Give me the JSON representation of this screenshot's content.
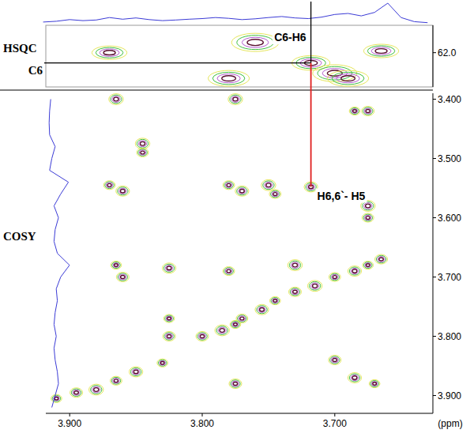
{
  "chart_data": [
    {
      "type": "contour",
      "title": "HSQC",
      "xlim": [
        3.918,
        3.626
      ],
      "ylim": [
        61.2,
        63.0
      ],
      "yticks": [
        {
          "value": 62,
          "label": "62.0"
        }
      ],
      "tick_labels": "y",
      "peaks": {
        "x": [
          3.87,
          3.78,
          3.76,
          3.718,
          3.7,
          3.665,
          3.69
        ],
        "y": [
          62.0,
          62.75,
          61.7,
          62.3,
          62.6,
          61.95,
          62.75
        ]
      },
      "projection": {
        "color": "#3b3bd6",
        "x": [
          3.92,
          3.91,
          3.9,
          3.89,
          3.88,
          3.87,
          3.86,
          3.85,
          3.84,
          3.83,
          3.82,
          3.81,
          3.8,
          3.79,
          3.78,
          3.77,
          3.76,
          3.75,
          3.74,
          3.73,
          3.72,
          3.71,
          3.7,
          3.69,
          3.68,
          3.67,
          3.66,
          3.65,
          3.64,
          3.63
        ],
        "values": [
          0.08,
          0.12,
          0.2,
          0.15,
          0.18,
          0.3,
          0.22,
          0.28,
          0.2,
          0.15,
          0.18,
          0.22,
          0.25,
          0.3,
          0.26,
          0.2,
          0.24,
          0.3,
          0.35,
          0.28,
          0.25,
          0.32,
          0.45,
          0.5,
          0.38,
          0.55,
          1.0,
          0.3,
          0.1,
          0.05
        ]
      },
      "annotations": [
        {
          "text": "C6",
          "y": 62.3
        },
        {
          "text": "C6-H6",
          "x": 3.718,
          "y": 62.3
        }
      ]
    },
    {
      "type": "contour",
      "title": "COSY",
      "xlim": [
        3.918,
        3.626
      ],
      "ylim": [
        3.39,
        3.93
      ],
      "xlabel": "(ppm)",
      "xticks": [
        {
          "value": 3.9,
          "label": "3.900"
        },
        {
          "value": 3.8,
          "label": "3.800"
        },
        {
          "value": 3.7,
          "label": "3.700"
        }
      ],
      "yticks": [
        {
          "value": 3.4,
          "label": "3.400"
        },
        {
          "value": 3.5,
          "label": "3.500"
        },
        {
          "value": 3.6,
          "label": "3.600"
        },
        {
          "value": 3.7,
          "label": "3.700"
        },
        {
          "value": 3.8,
          "label": "3.800"
        },
        {
          "value": 3.9,
          "label": "3.900"
        }
      ],
      "peaks": {
        "x": [
          3.91,
          3.895,
          3.88,
          3.865,
          3.85,
          3.83,
          3.8,
          3.785,
          3.77,
          3.755,
          3.745,
          3.73,
          3.715,
          3.7,
          3.685,
          3.675,
          3.665,
          3.865,
          3.87,
          3.86,
          3.865,
          3.86,
          3.845,
          3.845,
          3.825,
          3.825,
          3.825,
          3.775,
          3.78,
          3.77,
          3.775,
          3.775,
          3.75,
          3.745,
          3.718,
          3.685,
          3.675,
          3.675,
          3.675,
          3.685,
          3.67,
          3.7,
          3.73,
          3.78
        ],
        "y": [
          3.905,
          3.895,
          3.89,
          3.875,
          3.86,
          3.845,
          3.8,
          3.79,
          3.77,
          3.755,
          3.74,
          3.725,
          3.715,
          3.7,
          3.69,
          3.68,
          3.67,
          3.4,
          3.545,
          3.555,
          3.68,
          3.7,
          3.475,
          3.49,
          3.685,
          3.77,
          3.8,
          3.4,
          3.545,
          3.555,
          3.78,
          3.88,
          3.545,
          3.56,
          3.548,
          3.42,
          3.42,
          3.58,
          3.6,
          3.87,
          3.88,
          3.84,
          3.68,
          3.69
        ]
      },
      "projection": {
        "color": "#3b3bd6",
        "y": [
          3.4,
          3.42,
          3.44,
          3.46,
          3.48,
          3.5,
          3.52,
          3.54,
          3.56,
          3.58,
          3.6,
          3.62,
          3.64,
          3.66,
          3.68,
          3.7,
          3.72,
          3.74,
          3.76,
          3.78,
          3.8,
          3.82,
          3.84,
          3.86,
          3.88,
          3.9,
          3.92
        ],
        "values": [
          0.15,
          0.1,
          0.08,
          0.1,
          0.35,
          0.2,
          0.1,
          0.95,
          0.6,
          0.3,
          0.5,
          0.35,
          0.3,
          0.45,
          1.0,
          0.6,
          0.4,
          0.45,
          0.35,
          0.3,
          0.4,
          0.3,
          0.35,
          0.45,
          0.5,
          0.35,
          0.2
        ]
      },
      "annotations": [
        {
          "text": "H6,6`- H5",
          "x": 3.718,
          "y": 3.548,
          "color": "#e02020"
        }
      ]
    }
  ]
}
